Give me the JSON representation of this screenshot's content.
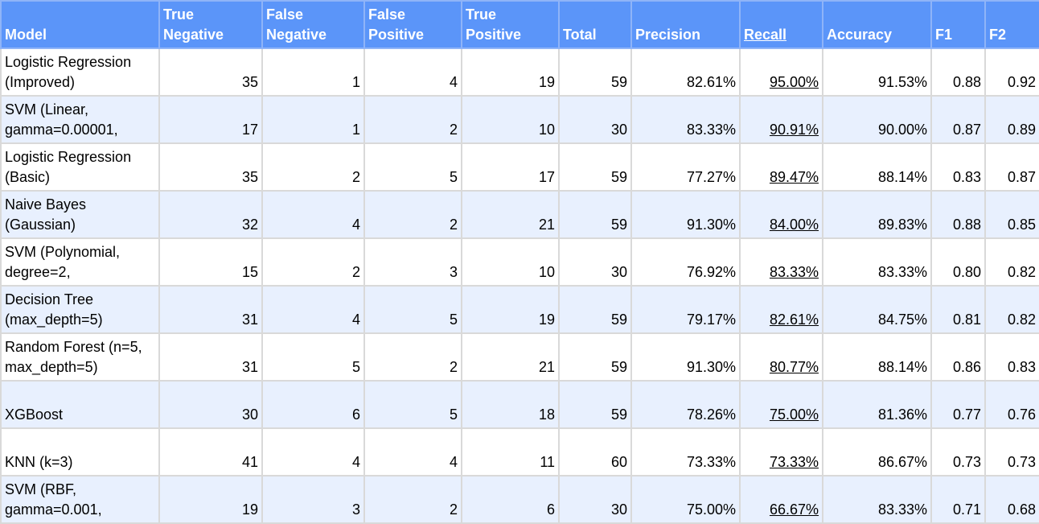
{
  "table": {
    "headers": [
      {
        "label": "Model",
        "key": "model"
      },
      {
        "label": "True\nNegative",
        "key": "tn"
      },
      {
        "label": "False\nNegative",
        "key": "fn"
      },
      {
        "label": "False\nPositive",
        "key": "fp"
      },
      {
        "label": "True\nPositive",
        "key": "tp"
      },
      {
        "label": "Total",
        "key": "total"
      },
      {
        "label": "Precision",
        "key": "precision"
      },
      {
        "label": "Recall",
        "key": "recall"
      },
      {
        "label": "Accuracy",
        "key": "accuracy"
      },
      {
        "label": "F1",
        "key": "f1"
      },
      {
        "label": "F2",
        "key": "f2"
      }
    ],
    "rows": [
      {
        "model": "Logistic Regression (Improved)",
        "tn": "35",
        "fn": "1",
        "fp": "4",
        "tp": "19",
        "total": "59",
        "precision": "82.61%",
        "recall": "95.00%",
        "accuracy": "91.53%",
        "f1": "0.88",
        "f2": "0.92"
      },
      {
        "model": "SVM (Linear, gamma=0.00001,",
        "tn": "17",
        "fn": "1",
        "fp": "2",
        "tp": "10",
        "total": "30",
        "precision": "83.33%",
        "recall": "90.91%",
        "accuracy": "90.00%",
        "f1": "0.87",
        "f2": "0.89"
      },
      {
        "model": "Logistic Regression (Basic)",
        "tn": "35",
        "fn": "2",
        "fp": "5",
        "tp": "17",
        "total": "59",
        "precision": "77.27%",
        "recall": "89.47%",
        "accuracy": "88.14%",
        "f1": "0.83",
        "f2": "0.87"
      },
      {
        "model": "Naive Bayes (Gaussian)",
        "tn": "32",
        "fn": "4",
        "fp": "2",
        "tp": "21",
        "total": "59",
        "precision": "91.30%",
        "recall": "84.00%",
        "accuracy": "89.83%",
        "f1": "0.88",
        "f2": "0.85"
      },
      {
        "model": "SVM (Polynomial, degree=2,",
        "tn": "15",
        "fn": "2",
        "fp": "3",
        "tp": "10",
        "total": "30",
        "precision": "76.92%",
        "recall": "83.33%",
        "accuracy": "83.33%",
        "f1": "0.80",
        "f2": "0.82"
      },
      {
        "model": "Decision Tree (max_depth=5)",
        "tn": "31",
        "fn": "4",
        "fp": "5",
        "tp": "19",
        "total": "59",
        "precision": "79.17%",
        "recall": "82.61%",
        "accuracy": "84.75%",
        "f1": "0.81",
        "f2": "0.82"
      },
      {
        "model": "Random Forest (n=5, max_depth=5)",
        "tn": "31",
        "fn": "5",
        "fp": "2",
        "tp": "21",
        "total": "59",
        "precision": "91.30%",
        "recall": "80.77%",
        "accuracy": "88.14%",
        "f1": "0.86",
        "f2": "0.83"
      },
      {
        "model": "XGBoost",
        "tn": "30",
        "fn": "6",
        "fp": "5",
        "tp": "18",
        "total": "59",
        "precision": "78.26%",
        "recall": "75.00%",
        "accuracy": "81.36%",
        "f1": "0.77",
        "f2": "0.76"
      },
      {
        "model": "KNN (k=3)",
        "tn": "41",
        "fn": "4",
        "fp": "4",
        "tp": "11",
        "total": "60",
        "precision": "73.33%",
        "recall": "73.33%",
        "accuracy": "86.67%",
        "f1": "0.73",
        "f2": "0.73"
      },
      {
        "model": "SVM (RBF, gamma=0.001,",
        "tn": "19",
        "fn": "3",
        "fp": "2",
        "tp": "6",
        "total": "30",
        "precision": "75.00%",
        "recall": "66.67%",
        "accuracy": "83.33%",
        "f1": "0.71",
        "f2": "0.68"
      }
    ]
  },
  "colors": {
    "header_bg": "#5b95f9",
    "header_text": "#ffffff",
    "alt_row_bg": "#e8f0fe",
    "grid": "#d9d9d9"
  }
}
